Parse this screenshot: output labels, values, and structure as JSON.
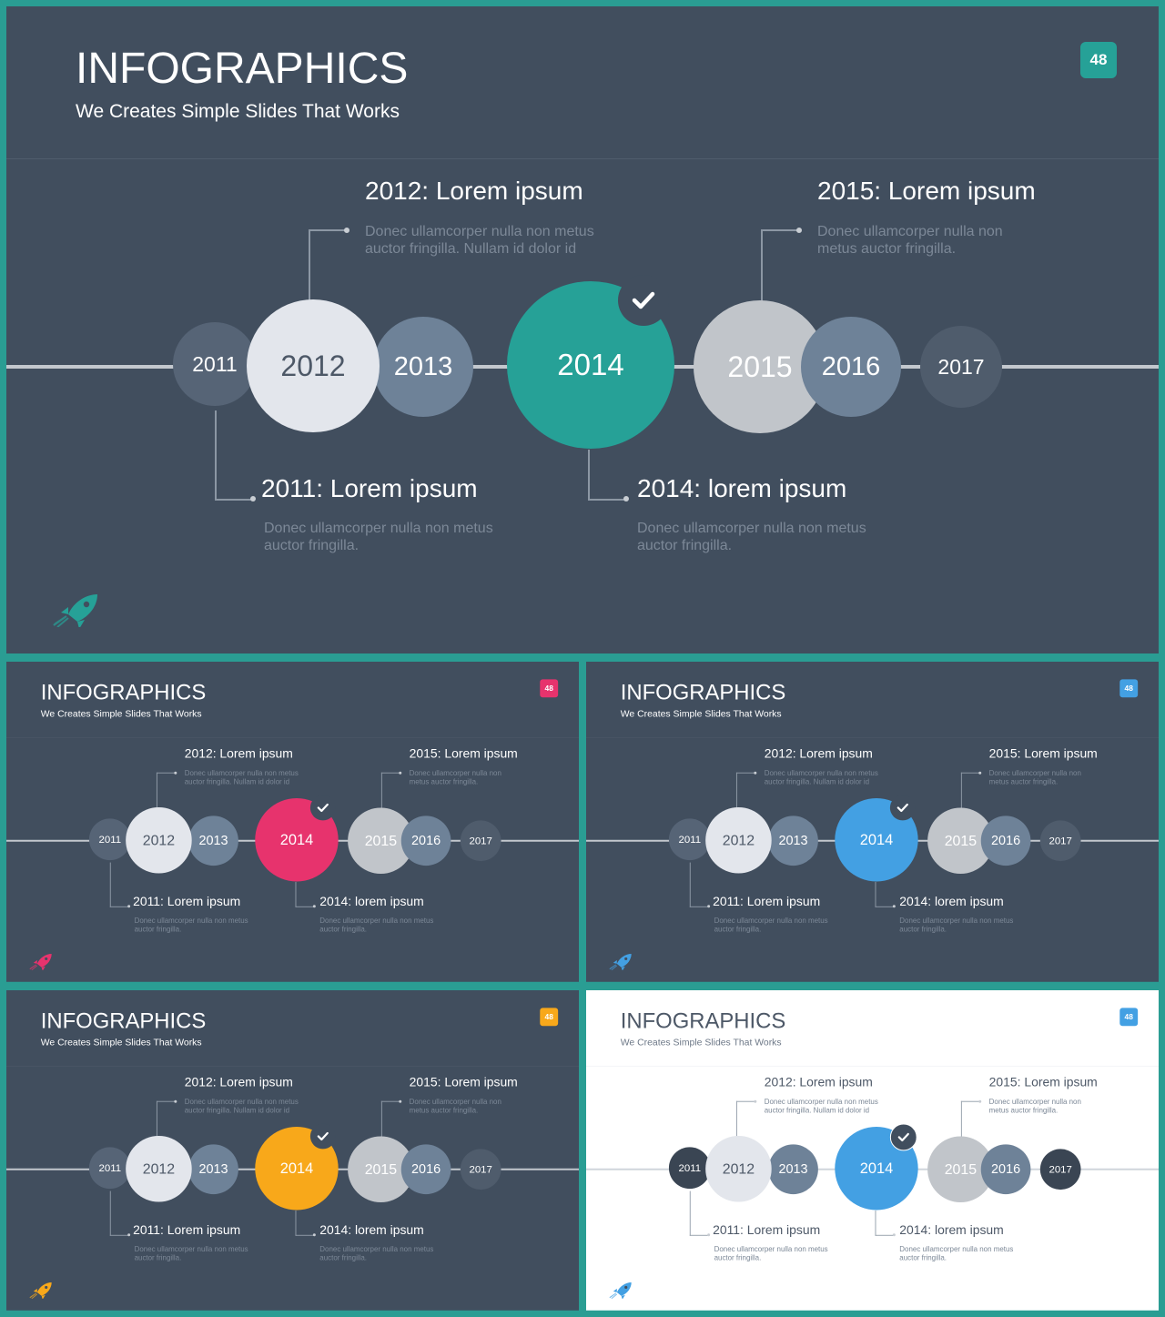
{
  "slide": {
    "title": "INFOGRAPHICS",
    "subtitle": "We Creates Simple Slides That Works",
    "badge": "48",
    "years": [
      "2011",
      "2012",
      "2013",
      "2014",
      "2015",
      "2016",
      "2017"
    ],
    "callouts": {
      "c2012": {
        "title": "2012: Lorem ipsum",
        "desc": "Donec ullamcorper nulla non metus auctor fringilla. Nullam id dolor id"
      },
      "c2015": {
        "title": "2015: Lorem ipsum",
        "desc": "Donec ullamcorper nulla non metus auctor fringilla."
      },
      "c2011": {
        "title": "2011: Lorem ipsum",
        "desc": "Donec ullamcorper nulla non metus auctor fringilla."
      },
      "c2014": {
        "title": "2014: lorem ipsum",
        "desc": "Donec ullamcorper nulla non metus auctor fringilla."
      }
    },
    "check_icon": "check-icon",
    "rocket_icon": "rocket-icon"
  },
  "variants": [
    {
      "name": "main",
      "theme": "dark",
      "accent": "#26a197"
    },
    {
      "name": "pink",
      "theme": "dark",
      "accent": "#e7336d"
    },
    {
      "name": "blue",
      "theme": "dark",
      "accent": "#43a0e3"
    },
    {
      "name": "orange",
      "theme": "dark",
      "accent": "#f8a81a"
    },
    {
      "name": "white",
      "theme": "light",
      "accent": "#43a0e3"
    }
  ],
  "colors": {
    "frame": "#2a9d93",
    "dark_bg": "#414e5e",
    "light_bg": "#ffffff",
    "circle_2011": "#566476",
    "circle_2012": "#e3e6ec",
    "circle_2013": "#6e8298",
    "circle_2015": "#c1c5ca",
    "circle_2016": "#6e8298",
    "circle_2017": "#4f5c6c",
    "light_dark_circle": "#3a4553"
  }
}
